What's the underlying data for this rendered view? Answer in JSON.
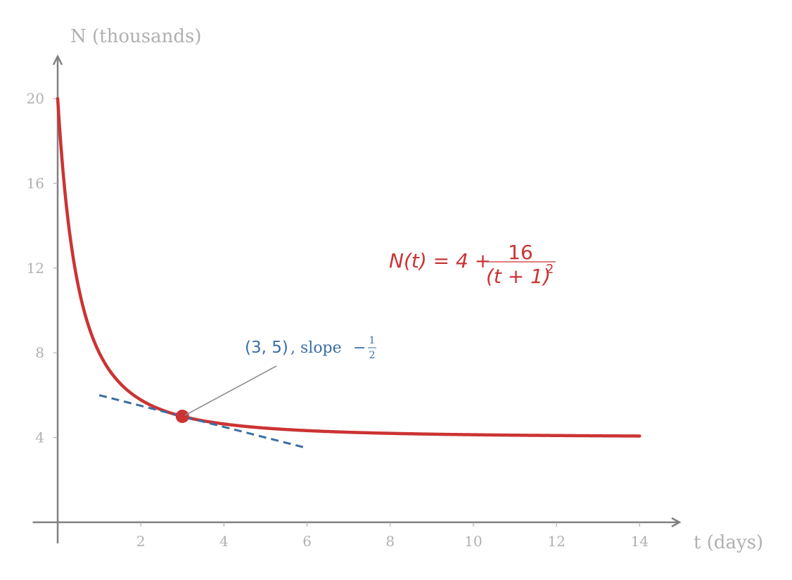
{
  "chart_data": {
    "type": "line",
    "xlabel": "t (days)",
    "ylabel": "N (thousands)",
    "xlim": [
      -0.6,
      15
    ],
    "ylim": [
      -1,
      22
    ],
    "x_ticks": [
      2,
      4,
      6,
      8,
      10,
      12,
      14
    ],
    "y_ticks": [
      4,
      8,
      12,
      16,
      20
    ],
    "grid": false,
    "series": [
      {
        "function": "N(t) = 4 + 16/(t+1)^2",
        "x_range": [
          0,
          14
        ],
        "color": "#cc3333",
        "x": [
          0,
          0.5,
          1,
          1.5,
          2,
          3,
          4,
          5,
          6,
          8,
          10,
          12,
          14
        ],
        "y": [
          20,
          11.11,
          8,
          6.56,
          5.78,
          5,
          4.64,
          4.44,
          4.33,
          4.2,
          4.13,
          4.09,
          4.07
        ]
      },
      {
        "kind": "tangent line",
        "style": "dashed",
        "color": "#3a6ea5",
        "x": [
          1,
          6
        ],
        "y": [
          6,
          3.5
        ]
      }
    ],
    "point": {
      "x": 3,
      "y": 5,
      "color": "#cc3333"
    },
    "annotations": {
      "formula": {
        "lhs": "N(t) = 4 + ",
        "numerator": "16",
        "denominator": "(t + 1)",
        "exponent": "2"
      },
      "point_label": {
        "coords": "(3, 5)",
        "text": ", slope ",
        "minus": "−",
        "frac_num": "1",
        "frac_den": "2"
      }
    }
  }
}
